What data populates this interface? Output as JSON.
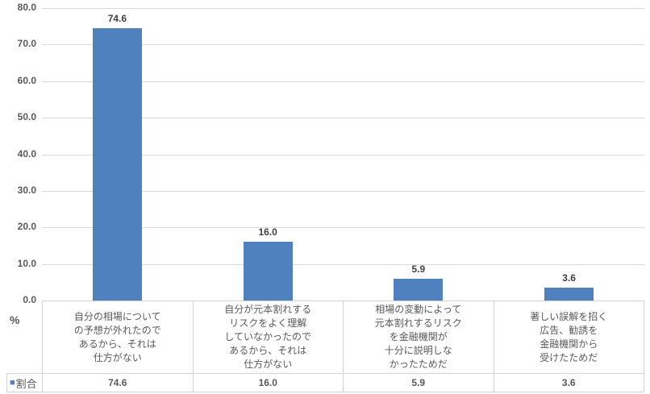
{
  "chart_data": {
    "type": "bar",
    "title": "",
    "categories": [
      "自分の相場について\nの予想が外れたので\nあるから、それは\n仕方がない",
      "自分が元本割れする\nリスクをよく理解\nしていなかったので\nあるから、それは\n仕方がない",
      "相場の変動によって\n元本割れするリスク\nを金融機関が\n十分に説明しな\nかったためだ",
      "著しい誤解を招く\n広告、勧誘を\n金融機関から\n受けたためだ"
    ],
    "series": [
      {
        "name": "割合",
        "values": [
          74.6,
          16.0,
          5.9,
          3.6
        ]
      }
    ],
    "values": [
      74.6,
      16.0,
      5.9,
      3.6
    ],
    "value_labels": [
      "74.6",
      "16.0",
      "5.9",
      "3.6"
    ],
    "xlabel": "",
    "ylabel": "%",
    "ylim": [
      0,
      80
    ],
    "ytick_step": 10,
    "yticks": [
      "80.0",
      "70.0",
      "60.0",
      "50.0",
      "40.0",
      "30.0",
      "20.0",
      "10.0",
      "0.0"
    ],
    "grid": true,
    "legend_position": "bottom data table",
    "bar_color": "#4E81BD",
    "gridline_color": "#D9D9D9",
    "table_border_color": "#D3D3D3"
  },
  "legend": {
    "marker": "■",
    "label": "割合"
  },
  "table": {
    "values": [
      "74.6",
      "16.0",
      "5.9",
      "3.6"
    ]
  }
}
